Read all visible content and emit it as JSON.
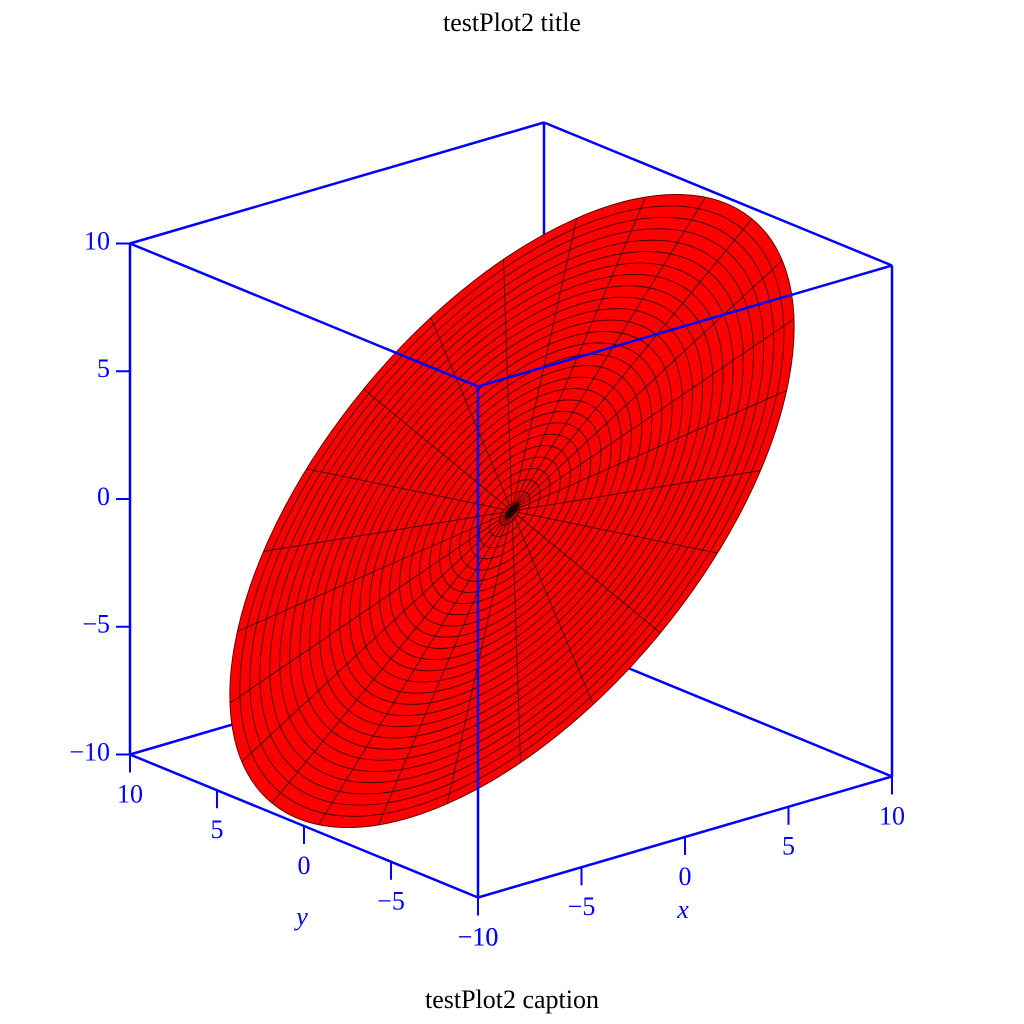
{
  "chart_data": {
    "type": "surface3d",
    "title": "testPlot2 title",
    "caption": "testPlot2 caption",
    "xlabel": "x",
    "ylabel": "y",
    "xlim": [
      -10,
      10
    ],
    "ylim": [
      -10,
      10
    ],
    "zlim": [
      -10,
      10
    ],
    "xticks": [
      {
        "value": -10,
        "label": "−10"
      },
      {
        "value": -5,
        "label": "−5"
      },
      0,
      5,
      10
    ],
    "yticks": [
      {
        "value": -10,
        "label": "−10"
      },
      {
        "value": -5,
        "label": "−5"
      },
      0,
      5,
      10
    ],
    "zticks": [
      {
        "value": -10,
        "label": "−10"
      },
      {
        "value": -5,
        "label": "−5"
      },
      0,
      5,
      10
    ],
    "axis_color": "#0000ff",
    "surface_color": "#ff0000"
  }
}
